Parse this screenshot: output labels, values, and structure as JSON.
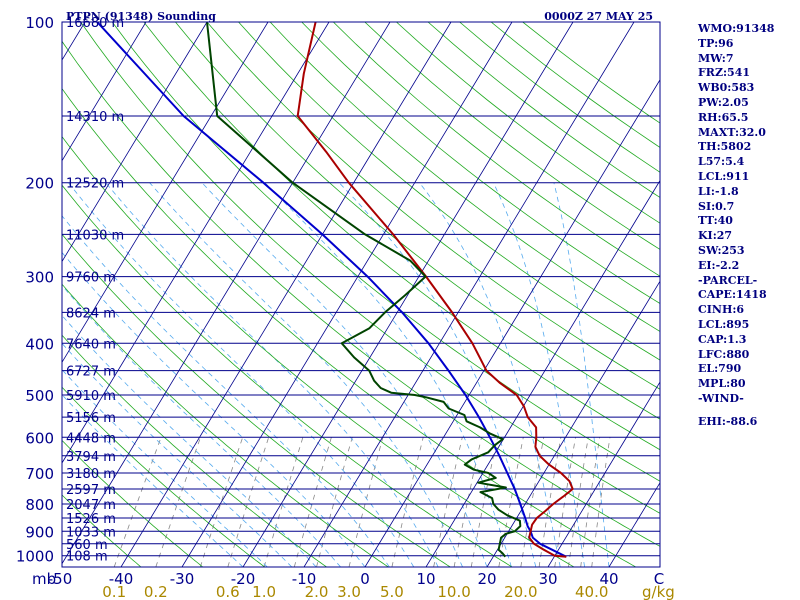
{
  "header": {
    "station_title": "PTPN (91348) Sounding",
    "time": "0000Z 27 MAY 25"
  },
  "indices": [
    "WMO:91348",
    "TP:96",
    "MW:7",
    "FRZ:541",
    "WB0:583",
    "PW:2.05",
    "RH:65.5",
    "MAXT:32.0",
    "TH:5802",
    "L57:5.4",
    "LCL:911",
    "LI:-1.8",
    "SI:0.7",
    "TT:40",
    "KI:27",
    "SW:253",
    "EI:-2.2",
    "-PARCEL-",
    "CAPE:1418",
    "CINH:6",
    "LCL:895",
    "CAP:1.3",
    "LFC:880",
    "EL:790",
    "MPL:80",
    "-WIND-",
    "",
    "EHI:-88.6"
  ],
  "colors": {
    "isobar": "#00008b",
    "isotherm": "#00008b",
    "dry_adiabat": "#22aa22",
    "moist_adiabat": "#55aaee",
    "mixing_ratio": "#888888",
    "temperature": "#aa0000",
    "dewpoint": "#004400",
    "parcel": "#0000cc",
    "text": "#000080",
    "mixing_label": "#aa8800"
  },
  "chart_data": {
    "type": "skew-t",
    "pressure_unit": "mb",
    "mixing_ratio_unit": "g/kg",
    "pressure_ticks": [
      100,
      200,
      300,
      400,
      500,
      600,
      700,
      800,
      900,
      1000
    ],
    "pressure_tick_labels": [
      "100",
      "200",
      "300",
      "400",
      "500",
      "600",
      "700",
      "800",
      "900",
      "1000"
    ],
    "temperature_ticks": [
      -50,
      -40,
      -30,
      -20,
      -10,
      0,
      10,
      20,
      30,
      40
    ],
    "temperature_tick_labels": [
      "-50",
      "-40",
      "-30",
      "-20",
      "-10",
      "0",
      "10",
      "20",
      "30",
      "40"
    ],
    "corner_label": "C",
    "mixing_ratio_ticks": [
      0.1,
      0.2,
      0.6,
      1.0,
      2.0,
      3.0,
      5.0,
      10.0,
      20.0,
      40.0
    ],
    "mixing_ratio_labels": [
      "0.1",
      "0.2",
      "0.6",
      "1.0",
      "2.0",
      "3.0",
      "5.0",
      "10.0",
      "20.0",
      "40.0"
    ],
    "height_levels": [
      {
        "p": 100,
        "label": "16680 m"
      },
      {
        "p": 150,
        "label": "14310 m"
      },
      {
        "p": 200,
        "label": "12520 m"
      },
      {
        "p": 250,
        "label": "11030 m"
      },
      {
        "p": 300,
        "label": "9760 m"
      },
      {
        "p": 350,
        "label": "8624 m"
      },
      {
        "p": 400,
        "label": "7640 m"
      },
      {
        "p": 450,
        "label": "6727 m"
      },
      {
        "p": 500,
        "label": "5910 m"
      },
      {
        "p": 550,
        "label": "5156 m"
      },
      {
        "p": 600,
        "label": "4448 m"
      },
      {
        "p": 650,
        "label": "3794 m"
      },
      {
        "p": 700,
        "label": "3180 m"
      },
      {
        "p": 750,
        "label": "2597 m"
      },
      {
        "p": 800,
        "label": "2047 m"
      },
      {
        "p": 850,
        "label": "1526 m"
      },
      {
        "p": 900,
        "label": "1033 m"
      },
      {
        "p": 950,
        "label": "560 m"
      },
      {
        "p": 1000,
        "label": "108 m"
      }
    ],
    "temperature_profile": [
      [
        1005,
        32.0
      ],
      [
        1000,
        30.0
      ],
      [
        975,
        27.6
      ],
      [
        950,
        25.4
      ],
      [
        925,
        24.0
      ],
      [
        900,
        23.6
      ],
      [
        875,
        23.2
      ],
      [
        850,
        23.3
      ],
      [
        825,
        24.0
      ],
      [
        800,
        24.6
      ],
      [
        775,
        25.5
      ],
      [
        750,
        26.3
      ],
      [
        725,
        25.0
      ],
      [
        700,
        22.8
      ],
      [
        675,
        20.0
      ],
      [
        650,
        17.6
      ],
      [
        625,
        16.0
      ],
      [
        600,
        15.2
      ],
      [
        575,
        14.2
      ],
      [
        550,
        11.8
      ],
      [
        525,
        10.1
      ],
      [
        500,
        7.8
      ],
      [
        475,
        3.9
      ],
      [
        450,
        0.4
      ],
      [
        425,
        -2.0
      ],
      [
        400,
        -4.6
      ],
      [
        350,
        -11.0
      ],
      [
        300,
        -18.8
      ],
      [
        250,
        -28.4
      ],
      [
        200,
        -40.8
      ],
      [
        175,
        -47.6
      ],
      [
        150,
        -55.8
      ],
      [
        125,
        -59.0
      ],
      [
        100,
        -62.2
      ]
    ],
    "dewpoint_profile": [
      [
        1005,
        22.0
      ],
      [
        990,
        21.2
      ],
      [
        975,
        20.2
      ],
      [
        950,
        19.8
      ],
      [
        925,
        19.4
      ],
      [
        910,
        19.8
      ],
      [
        900,
        21.0
      ],
      [
        880,
        21.4
      ],
      [
        860,
        20.8
      ],
      [
        840,
        18.2
      ],
      [
        820,
        16.2
      ],
      [
        800,
        14.8
      ],
      [
        780,
        14.0
      ],
      [
        760,
        11.5
      ],
      [
        745,
        15.2
      ],
      [
        730,
        10.2
      ],
      [
        715,
        12.6
      ],
      [
        700,
        10.9
      ],
      [
        690,
        8.2
      ],
      [
        675,
        6.2
      ],
      [
        660,
        6.8
      ],
      [
        640,
        8.8
      ],
      [
        620,
        9.2
      ],
      [
        605,
        9.9
      ],
      [
        590,
        7.2
      ],
      [
        575,
        5.0
      ],
      [
        560,
        2.2
      ],
      [
        545,
        1.2
      ],
      [
        530,
        -2.0
      ],
      [
        515,
        -3.5
      ],
      [
        505,
        -6.8
      ],
      [
        500,
        -8.9
      ],
      [
        495,
        -13.0
      ],
      [
        485,
        -15.2
      ],
      [
        470,
        -17.0
      ],
      [
        450,
        -18.8
      ],
      [
        425,
        -22.6
      ],
      [
        400,
        -26.0
      ],
      [
        375,
        -23.0
      ],
      [
        350,
        -22.0
      ],
      [
        325,
        -20.4
      ],
      [
        300,
        -18.9
      ],
      [
        280,
        -23.0
      ],
      [
        250,
        -33.0
      ],
      [
        200,
        -50.0
      ],
      [
        150,
        -69.0
      ],
      [
        100,
        -80.0
      ]
    ],
    "parcel_profile": [
      [
        1005,
        32.0
      ],
      [
        975,
        29.0
      ],
      [
        950,
        26.4
      ],
      [
        925,
        24.6
      ],
      [
        900,
        23.6
      ],
      [
        880,
        22.6
      ],
      [
        850,
        21.4
      ],
      [
        800,
        19.2
      ],
      [
        750,
        16.8
      ],
      [
        700,
        14.0
      ],
      [
        650,
        11.0
      ],
      [
        600,
        7.6
      ],
      [
        550,
        3.8
      ],
      [
        500,
        -0.6
      ],
      [
        450,
        -5.8
      ],
      [
        400,
        -11.8
      ],
      [
        350,
        -19.2
      ],
      [
        300,
        -28.4
      ],
      [
        250,
        -40.0
      ],
      [
        200,
        -54.8
      ],
      [
        150,
        -74.5
      ],
      [
        100,
        -98.0
      ]
    ]
  }
}
